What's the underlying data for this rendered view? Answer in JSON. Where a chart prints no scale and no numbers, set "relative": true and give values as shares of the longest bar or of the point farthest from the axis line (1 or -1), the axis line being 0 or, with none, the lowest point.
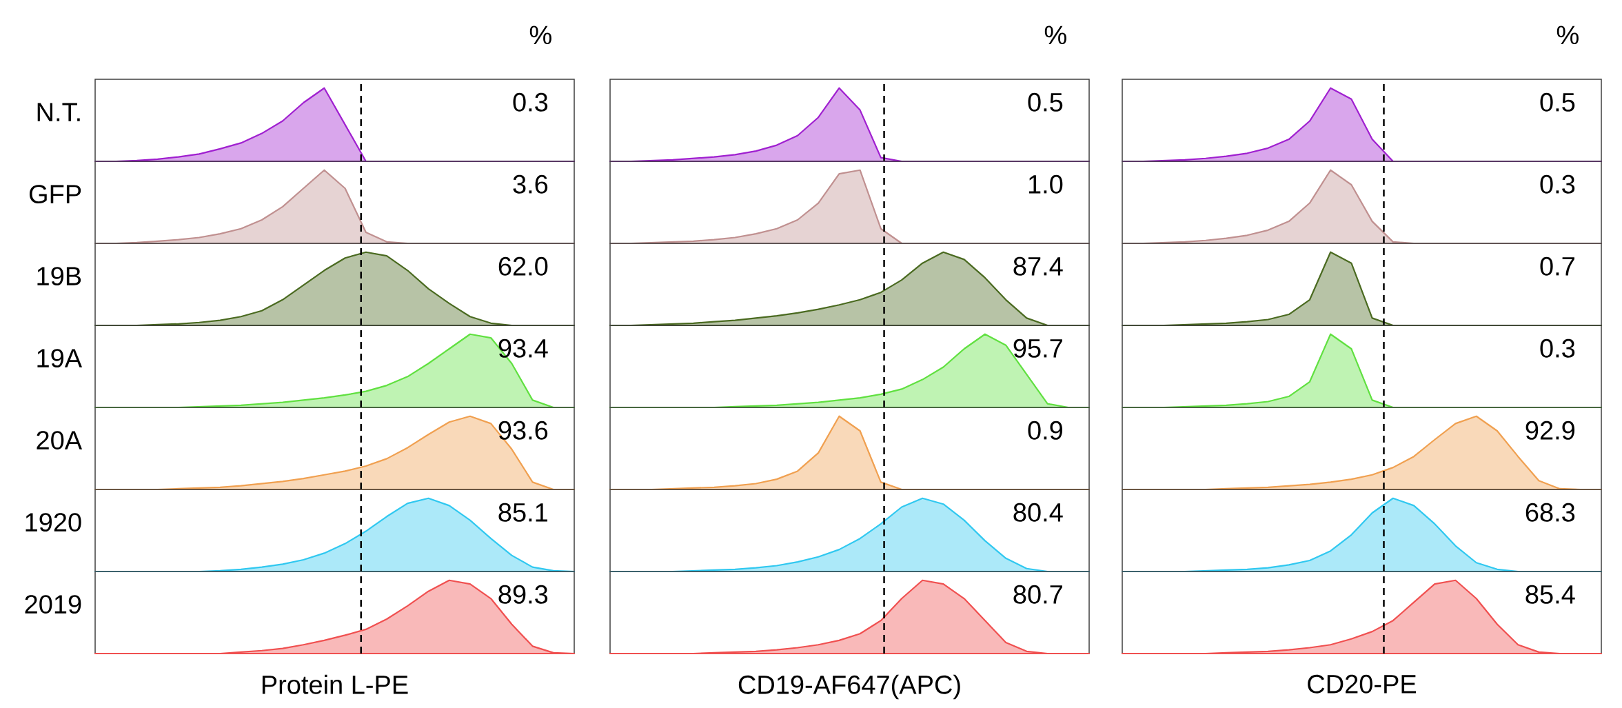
{
  "chart_data": [
    {
      "type": "area",
      "relative": true,
      "title": "%",
      "ylabel": "N.T.",
      "categories": [
        null,
        null,
        null,
        null,
        null,
        null,
        null,
        null,
        null,
        null,
        null,
        null,
        null,
        null,
        null,
        null,
        null,
        null,
        null,
        null,
        null,
        null,
        null,
        null
      ],
      "values": [
        0,
        0,
        0.01,
        0.03,
        0.06,
        0.1,
        0.17,
        0.25,
        0.38,
        0.55,
        0.8,
        1.0,
        0.5,
        0,
        0,
        0,
        0,
        0,
        0,
        0,
        0,
        0,
        0,
        0
      ],
      "color": "#a020d0",
      "annotations": [
        "0.3"
      ]
    },
    {
      "type": "area",
      "relative": true,
      "title": "%",
      "categories": [
        null,
        null,
        null,
        null,
        null,
        null,
        null,
        null,
        null,
        null,
        null,
        null,
        null,
        null,
        null,
        null,
        null,
        null,
        null,
        null,
        null,
        null,
        null,
        null
      ],
      "values": [
        0,
        0,
        0.01,
        0.02,
        0.04,
        0.06,
        0.09,
        0.14,
        0.22,
        0.35,
        0.6,
        1.0,
        0.7,
        0.05,
        0,
        0,
        0,
        0,
        0,
        0,
        0,
        0,
        0,
        0
      ],
      "color": "#a020d0",
      "annotations": [
        "0.5"
      ]
    },
    {
      "type": "area",
      "relative": true,
      "title": "%",
      "categories": [
        null,
        null,
        null,
        null,
        null,
        null,
        null,
        null,
        null,
        null,
        null,
        null,
        null,
        null,
        null,
        null,
        null,
        null,
        null,
        null,
        null,
        null,
        null,
        null
      ],
      "values": [
        0,
        0,
        0.01,
        0.02,
        0.04,
        0.07,
        0.11,
        0.18,
        0.3,
        0.55,
        1.0,
        0.85,
        0.3,
        0,
        0,
        0,
        0,
        0,
        0,
        0,
        0,
        0,
        0,
        0
      ],
      "color": "#a020d0",
      "annotations": [
        "0.5"
      ]
    },
    {
      "type": "area",
      "relative": true,
      "ylabel": "GFP",
      "categories": [
        null,
        null,
        null,
        null,
        null,
        null,
        null,
        null,
        null,
        null,
        null,
        null,
        null,
        null,
        null,
        null,
        null,
        null,
        null,
        null,
        null,
        null,
        null,
        null
      ],
      "values": [
        0,
        0,
        0.01,
        0.03,
        0.05,
        0.08,
        0.13,
        0.2,
        0.32,
        0.5,
        0.75,
        1.0,
        0.75,
        0.15,
        0.02,
        0,
        0,
        0,
        0,
        0,
        0,
        0,
        0,
        0
      ],
      "color": "#c09090",
      "annotations": [
        "3.6"
      ]
    },
    {
      "type": "area",
      "relative": true,
      "categories": [
        null,
        null,
        null,
        null,
        null,
        null,
        null,
        null,
        null,
        null,
        null,
        null,
        null,
        null,
        null,
        null,
        null,
        null,
        null,
        null,
        null,
        null,
        null,
        null
      ],
      "values": [
        0,
        0,
        0.01,
        0.02,
        0.03,
        0.05,
        0.08,
        0.13,
        0.2,
        0.32,
        0.55,
        0.95,
        1.0,
        0.2,
        0,
        0,
        0,
        0,
        0,
        0,
        0,
        0,
        0,
        0
      ],
      "color": "#c09090",
      "annotations": [
        "1.0"
      ]
    },
    {
      "type": "area",
      "relative": true,
      "categories": [
        null,
        null,
        null,
        null,
        null,
        null,
        null,
        null,
        null,
        null,
        null,
        null,
        null,
        null,
        null,
        null,
        null,
        null,
        null,
        null,
        null,
        null,
        null,
        null
      ],
      "values": [
        0,
        0,
        0.01,
        0.02,
        0.04,
        0.07,
        0.11,
        0.18,
        0.3,
        0.55,
        1.0,
        0.8,
        0.3,
        0.02,
        0,
        0,
        0,
        0,
        0,
        0,
        0,
        0,
        0,
        0
      ],
      "color": "#c09090",
      "annotations": [
        "0.3"
      ]
    },
    {
      "type": "area",
      "relative": true,
      "ylabel": "19B",
      "categories": [
        null,
        null,
        null,
        null,
        null,
        null,
        null,
        null,
        null,
        null,
        null,
        null,
        null,
        null,
        null,
        null,
        null,
        null,
        null,
        null,
        null,
        null,
        null,
        null
      ],
      "values": [
        0,
        0,
        0,
        0.01,
        0.02,
        0.04,
        0.07,
        0.12,
        0.2,
        0.35,
        0.55,
        0.75,
        0.92,
        1.0,
        0.95,
        0.75,
        0.5,
        0.3,
        0.12,
        0.03,
        0,
        0,
        0,
        0
      ],
      "color": "#4a6a20",
      "annotations": [
        "62.0"
      ]
    },
    {
      "type": "area",
      "relative": true,
      "categories": [
        null,
        null,
        null,
        null,
        null,
        null,
        null,
        null,
        null,
        null,
        null,
        null,
        null,
        null,
        null,
        null,
        null,
        null,
        null,
        null,
        null,
        null,
        null,
        null
      ],
      "values": [
        0,
        0,
        0.01,
        0.02,
        0.03,
        0.05,
        0.07,
        0.1,
        0.13,
        0.17,
        0.22,
        0.28,
        0.35,
        0.45,
        0.62,
        0.85,
        1.0,
        0.9,
        0.65,
        0.35,
        0.1,
        0,
        0,
        0
      ],
      "color": "#4a6a20",
      "annotations": [
        "87.4"
      ]
    },
    {
      "type": "area",
      "relative": true,
      "categories": [
        null,
        null,
        null,
        null,
        null,
        null,
        null,
        null,
        null,
        null,
        null,
        null,
        null,
        null,
        null,
        null,
        null,
        null,
        null,
        null,
        null,
        null,
        null,
        null
      ],
      "values": [
        0,
        0,
        0,
        0.01,
        0.02,
        0.03,
        0.05,
        0.08,
        0.15,
        0.35,
        1.0,
        0.85,
        0.1,
        0,
        0,
        0,
        0,
        0,
        0,
        0,
        0,
        0,
        0,
        0
      ],
      "color": "#4a6a20",
      "annotations": [
        "0.7"
      ]
    },
    {
      "type": "area",
      "relative": true,
      "ylabel": "19A",
      "categories": [
        null,
        null,
        null,
        null,
        null,
        null,
        null,
        null,
        null,
        null,
        null,
        null,
        null,
        null,
        null,
        null,
        null,
        null,
        null,
        null,
        null,
        null,
        null,
        null
      ],
      "values": [
        0,
        0,
        0,
        0,
        0,
        0.01,
        0.02,
        0.03,
        0.05,
        0.07,
        0.1,
        0.13,
        0.17,
        0.22,
        0.3,
        0.42,
        0.6,
        0.8,
        1.0,
        0.95,
        0.6,
        0.1,
        0,
        0
      ],
      "color": "#60e040",
      "annotations": [
        "93.4"
      ]
    },
    {
      "type": "area",
      "relative": true,
      "categories": [
        null,
        null,
        null,
        null,
        null,
        null,
        null,
        null,
        null,
        null,
        null,
        null,
        null,
        null,
        null,
        null,
        null,
        null,
        null,
        null,
        null,
        null,
        null,
        null
      ],
      "values": [
        0,
        0,
        0,
        0,
        0,
        0,
        0.01,
        0.02,
        0.03,
        0.05,
        0.07,
        0.1,
        0.13,
        0.18,
        0.25,
        0.38,
        0.55,
        0.8,
        1.0,
        0.85,
        0.45,
        0.05,
        0,
        0
      ],
      "color": "#60e040",
      "annotations": [
        "95.7"
      ]
    },
    {
      "type": "area",
      "relative": true,
      "categories": [
        null,
        null,
        null,
        null,
        null,
        null,
        null,
        null,
        null,
        null,
        null,
        null,
        null,
        null,
        null,
        null,
        null,
        null,
        null,
        null,
        null,
        null,
        null,
        null
      ],
      "values": [
        0,
        0,
        0,
        0.01,
        0.02,
        0.03,
        0.05,
        0.08,
        0.15,
        0.35,
        1.0,
        0.8,
        0.1,
        0,
        0,
        0,
        0,
        0,
        0,
        0,
        0,
        0,
        0,
        0
      ],
      "color": "#60e040",
      "annotations": [
        "0.3"
      ]
    },
    {
      "type": "area",
      "relative": true,
      "ylabel": "20A",
      "categories": [
        null,
        null,
        null,
        null,
        null,
        null,
        null,
        null,
        null,
        null,
        null,
        null,
        null,
        null,
        null,
        null,
        null,
        null,
        null,
        null,
        null,
        null,
        null,
        null
      ],
      "values": [
        0,
        0,
        0,
        0,
        0.01,
        0.02,
        0.03,
        0.05,
        0.08,
        0.11,
        0.15,
        0.2,
        0.25,
        0.32,
        0.42,
        0.57,
        0.75,
        0.92,
        1.0,
        0.9,
        0.55,
        0.1,
        0,
        0
      ],
      "color": "#f0a050",
      "annotations": [
        "93.6"
      ]
    },
    {
      "type": "area",
      "relative": true,
      "categories": [
        null,
        null,
        null,
        null,
        null,
        null,
        null,
        null,
        null,
        null,
        null,
        null,
        null,
        null,
        null,
        null,
        null,
        null,
        null,
        null,
        null,
        null,
        null,
        null
      ],
      "values": [
        0,
        0,
        0,
        0.01,
        0.02,
        0.03,
        0.05,
        0.08,
        0.14,
        0.25,
        0.5,
        1.0,
        0.8,
        0.1,
        0,
        0,
        0,
        0,
        0,
        0,
        0,
        0,
        0,
        0
      ],
      "color": "#f0a050",
      "annotations": [
        "0.9"
      ]
    },
    {
      "type": "area",
      "relative": true,
      "categories": [
        null,
        null,
        null,
        null,
        null,
        null,
        null,
        null,
        null,
        null,
        null,
        null,
        null,
        null,
        null,
        null,
        null,
        null,
        null,
        null,
        null,
        null,
        null,
        null
      ],
      "values": [
        0,
        0,
        0,
        0,
        0,
        0.01,
        0.02,
        0.03,
        0.05,
        0.07,
        0.1,
        0.14,
        0.2,
        0.3,
        0.45,
        0.68,
        0.9,
        1.0,
        0.8,
        0.45,
        0.12,
        0.01,
        0,
        0
      ],
      "color": "#f0a050",
      "annotations": [
        "92.9"
      ]
    },
    {
      "type": "area",
      "relative": true,
      "ylabel": "1920",
      "categories": [
        null,
        null,
        null,
        null,
        null,
        null,
        null,
        null,
        null,
        null,
        null,
        null,
        null,
        null,
        null,
        null,
        null,
        null,
        null,
        null,
        null,
        null,
        null,
        null
      ],
      "values": [
        0,
        0,
        0,
        0,
        0,
        0,
        0.01,
        0.03,
        0.06,
        0.1,
        0.16,
        0.25,
        0.38,
        0.55,
        0.75,
        0.93,
        1.0,
        0.9,
        0.7,
        0.45,
        0.22,
        0.06,
        0.01,
        0
      ],
      "color": "#30c8f0",
      "annotations": [
        "85.1"
      ]
    },
    {
      "type": "area",
      "relative": true,
      "categories": [
        null,
        null,
        null,
        null,
        null,
        null,
        null,
        null,
        null,
        null,
        null,
        null,
        null,
        null,
        null,
        null,
        null,
        null,
        null,
        null,
        null,
        null,
        null,
        null
      ],
      "values": [
        0,
        0,
        0,
        0,
        0.01,
        0.02,
        0.03,
        0.05,
        0.08,
        0.13,
        0.2,
        0.3,
        0.45,
        0.65,
        0.88,
        1.0,
        0.92,
        0.7,
        0.42,
        0.18,
        0.04,
        0,
        0,
        0
      ],
      "color": "#30c8f0",
      "annotations": [
        "80.4"
      ]
    },
    {
      "type": "area",
      "relative": true,
      "categories": [
        null,
        null,
        null,
        null,
        null,
        null,
        null,
        null,
        null,
        null,
        null,
        null,
        null,
        null,
        null,
        null,
        null,
        null,
        null,
        null,
        null,
        null,
        null,
        null
      ],
      "values": [
        0,
        0,
        0,
        0,
        0.01,
        0.02,
        0.03,
        0.05,
        0.09,
        0.15,
        0.28,
        0.5,
        0.8,
        1.0,
        0.9,
        0.65,
        0.35,
        0.12,
        0.03,
        0,
        0,
        0,
        0,
        0
      ],
      "color": "#30c8f0",
      "annotations": [
        "68.3"
      ]
    },
    {
      "type": "area",
      "relative": true,
      "ylabel": "2019",
      "xlabel": "Protein L-PE",
      "categories": [
        null,
        null,
        null,
        null,
        null,
        null,
        null,
        null,
        null,
        null,
        null,
        null,
        null,
        null,
        null,
        null,
        null,
        null,
        null,
        null,
        null,
        null,
        null,
        null
      ],
      "values": [
        0,
        0,
        0,
        0,
        0,
        0,
        0,
        0.02,
        0.04,
        0.07,
        0.12,
        0.18,
        0.25,
        0.33,
        0.47,
        0.65,
        0.85,
        1.0,
        0.95,
        0.75,
        0.4,
        0.1,
        0.01,
        0
      ],
      "color": "#f05050",
      "annotations": [
        "89.3"
      ]
    },
    {
      "type": "area",
      "relative": true,
      "xlabel": "CD19-AF647(APC)",
      "categories": [
        null,
        null,
        null,
        null,
        null,
        null,
        null,
        null,
        null,
        null,
        null,
        null,
        null,
        null,
        null,
        null,
        null,
        null,
        null,
        null,
        null,
        null,
        null,
        null
      ],
      "values": [
        0,
        0,
        0,
        0,
        0,
        0.01,
        0.02,
        0.03,
        0.05,
        0.08,
        0.12,
        0.18,
        0.27,
        0.45,
        0.75,
        1.0,
        0.95,
        0.75,
        0.45,
        0.15,
        0.03,
        0,
        0,
        0
      ],
      "color": "#f05050",
      "annotations": [
        "80.7"
      ]
    },
    {
      "type": "area",
      "relative": true,
      "xlabel": "CD20-PE",
      "categories": [
        null,
        null,
        null,
        null,
        null,
        null,
        null,
        null,
        null,
        null,
        null,
        null,
        null,
        null,
        null,
        null,
        null,
        null,
        null,
        null,
        null,
        null,
        null,
        null
      ],
      "values": [
        0,
        0,
        0,
        0,
        0,
        0.01,
        0.02,
        0.03,
        0.05,
        0.08,
        0.12,
        0.2,
        0.3,
        0.45,
        0.7,
        0.95,
        1.0,
        0.75,
        0.4,
        0.12,
        0.02,
        0,
        0,
        0
      ],
      "color": "#f05050",
      "annotations": [
        "85.4"
      ]
    }
  ]
}
